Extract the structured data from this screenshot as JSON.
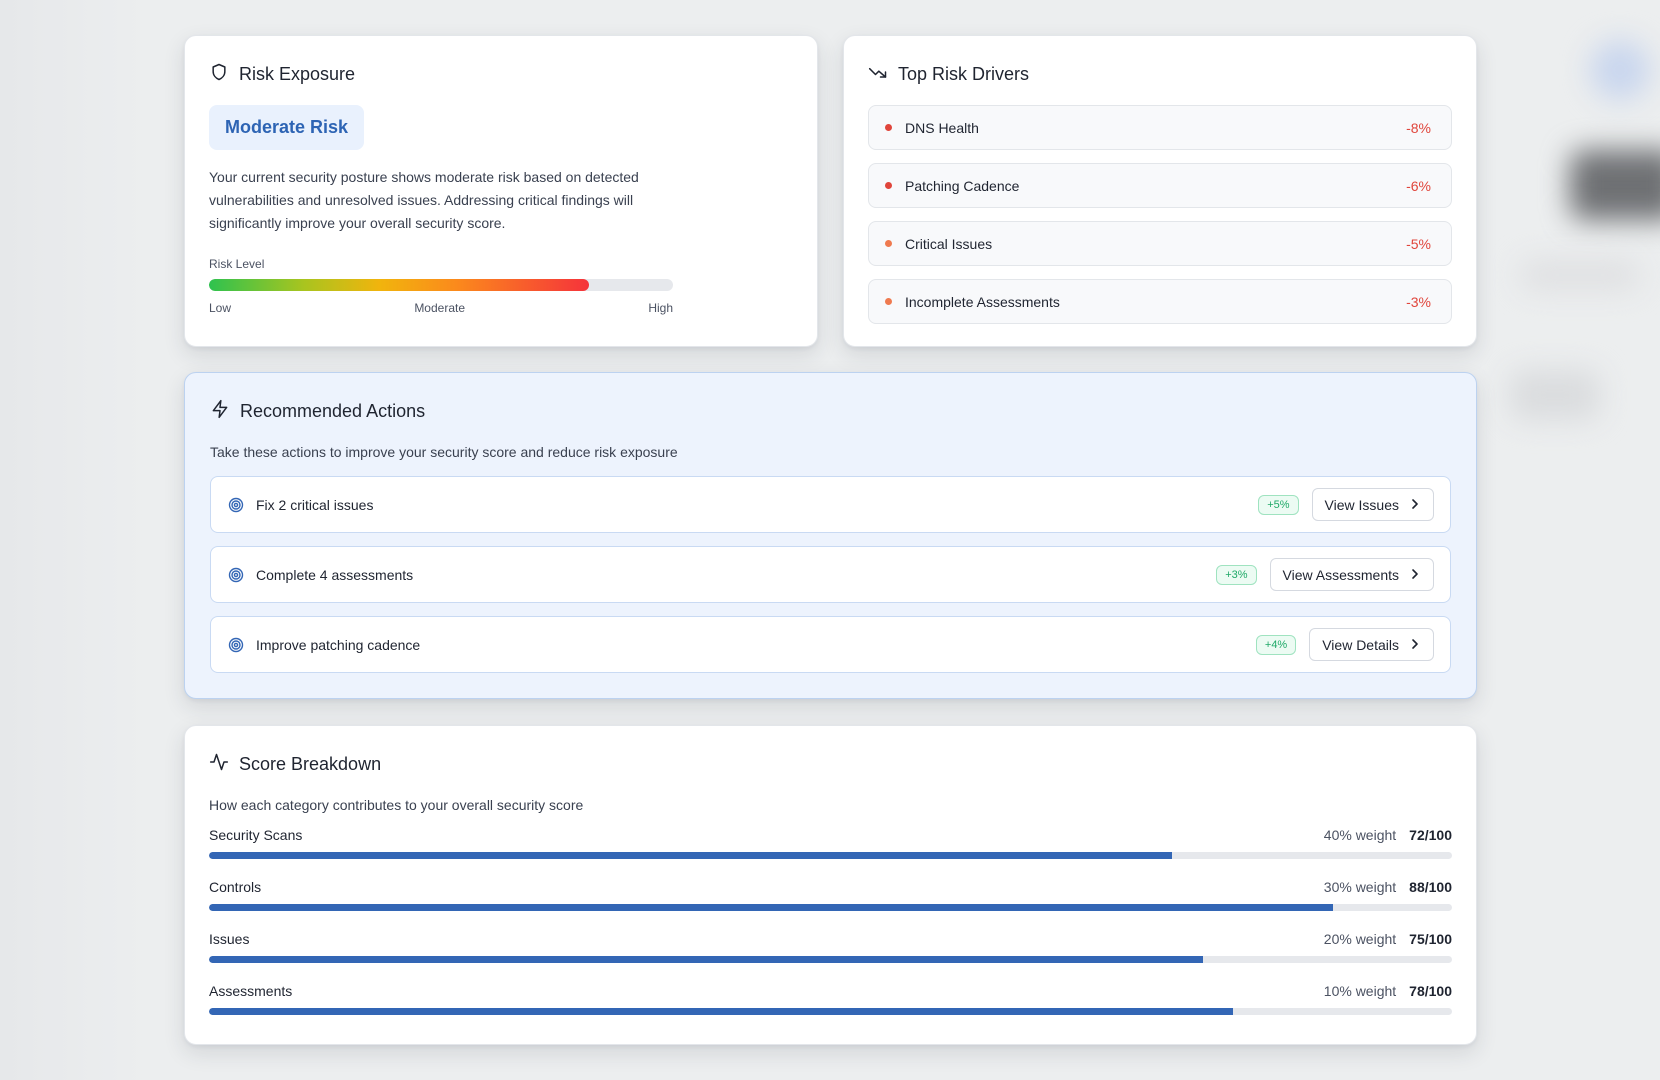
{
  "risk_exposure": {
    "title": "Risk Exposure",
    "icon": "shield-icon",
    "badge": "Moderate Risk",
    "description": "Your current security posture shows moderate risk based on detected vulnerabilities and unresolved issues. Addressing critical findings will significantly improve your overall security score.",
    "level_label": "Risk Level",
    "level_fraction": 0.82,
    "scale": {
      "low": "Low",
      "moderate": "Moderate",
      "high": "High"
    }
  },
  "top_risk_drivers": {
    "title": "Top Risk Drivers",
    "icon": "trending-down-icon",
    "items": [
      {
        "label": "DNS Health",
        "value": "-8%",
        "dot_color": "#e0453b"
      },
      {
        "label": "Patching Cadence",
        "value": "-6%",
        "dot_color": "#e0453b"
      },
      {
        "label": "Critical Issues",
        "value": "-5%",
        "dot_color": "#ef7a4f"
      },
      {
        "label": "Incomplete Assessments",
        "value": "-3%",
        "dot_color": "#ef7a4f"
      }
    ]
  },
  "recommended_actions": {
    "title": "Recommended Actions",
    "icon": "lightning-icon",
    "subtitle": "Take these actions to improve your security score and reduce risk exposure",
    "items": [
      {
        "label": "Fix 2 critical issues",
        "gain": "+5%",
        "button": "View Issues"
      },
      {
        "label": "Complete 4 assessments",
        "gain": "+3%",
        "button": "View Assessments"
      },
      {
        "label": "Improve patching cadence",
        "gain": "+4%",
        "button": "View Details"
      }
    ]
  },
  "score_breakdown": {
    "title": "Score Breakdown",
    "icon": "activity-icon",
    "subtitle": "How each category contributes to your overall security score",
    "items": [
      {
        "name": "Security Scans",
        "weight": "40% weight",
        "score": "72/100",
        "fraction": 0.775
      },
      {
        "name": "Controls",
        "weight": "30% weight",
        "score": "88/100",
        "fraction": 0.904
      },
      {
        "name": "Issues",
        "weight": "20% weight",
        "score": "75/100",
        "fraction": 0.8
      },
      {
        "name": "Assessments",
        "weight": "10% weight",
        "score": "78/100",
        "fraction": 0.824
      }
    ]
  },
  "colors": {
    "accent": "#3366b5",
    "negative": "#e0453b",
    "positive": "#1fa968"
  }
}
